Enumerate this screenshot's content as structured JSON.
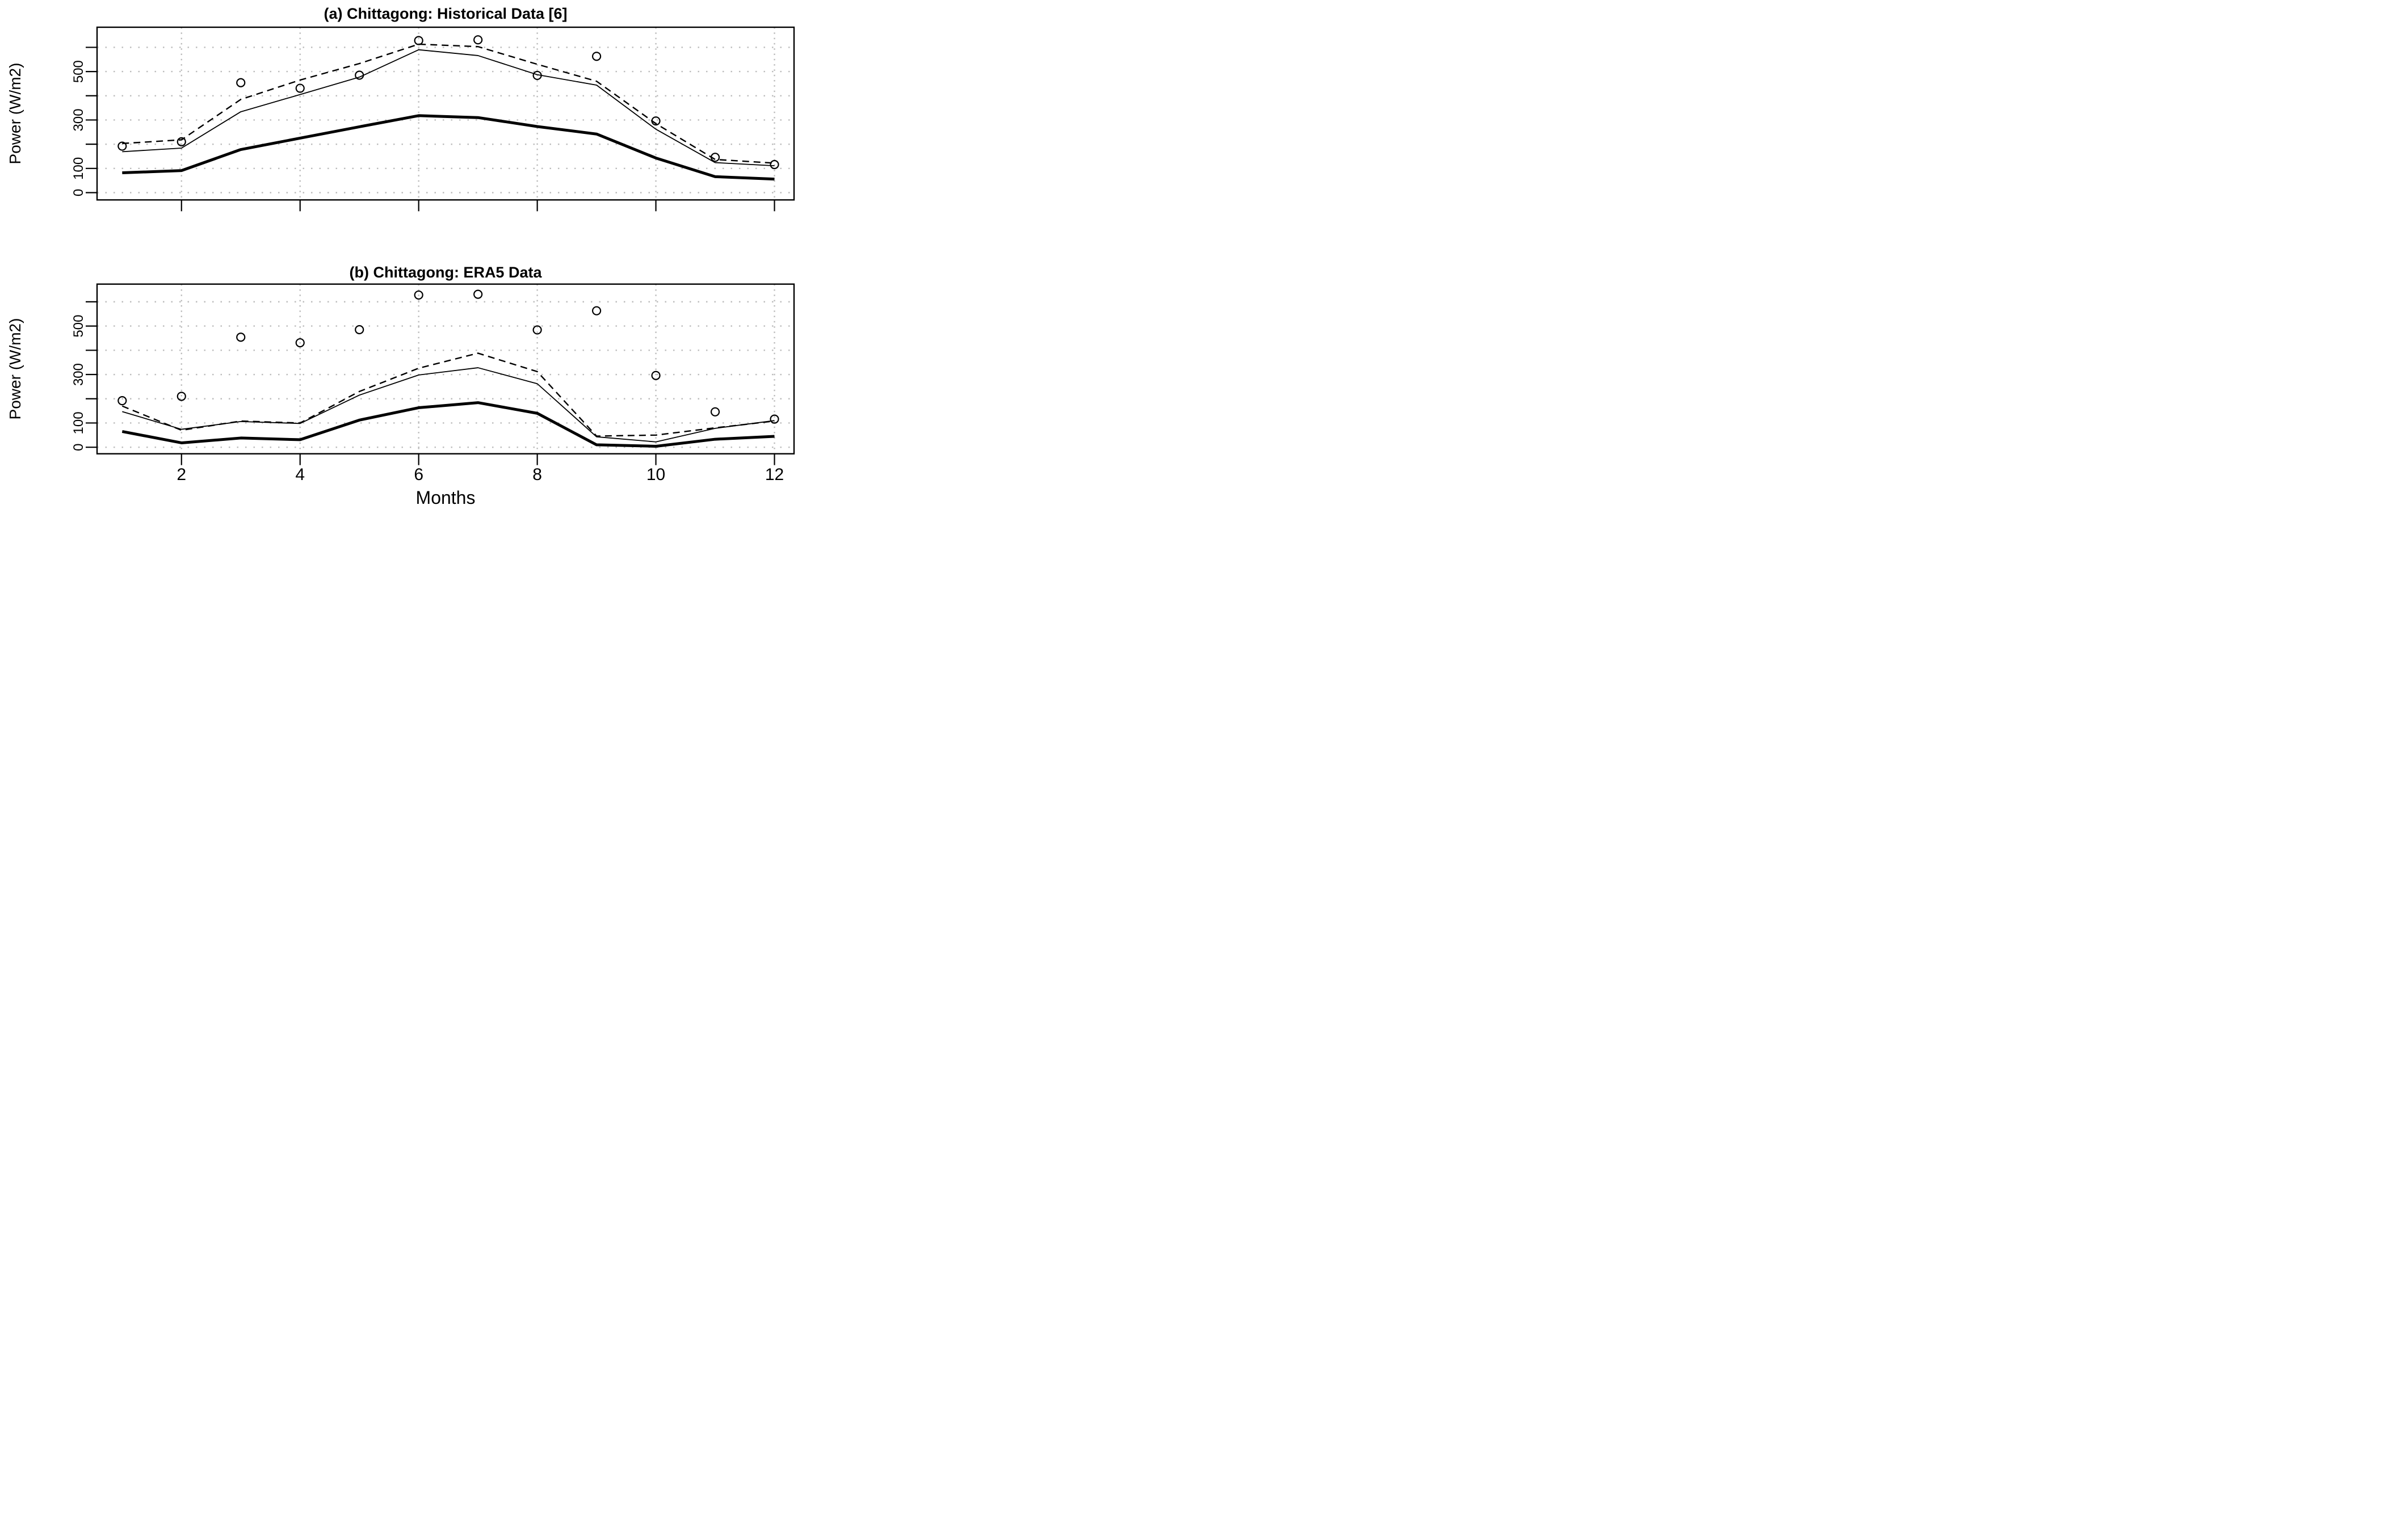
{
  "figure": {
    "background": "#ffffff",
    "ink_color": "#000000",
    "grid_color": "#bcbcbc",
    "xlabel": "Months",
    "ylabel": "Power (W/m2)",
    "x_tick_labels": [
      "2",
      "4",
      "6",
      "8",
      "10",
      "12"
    ]
  },
  "chart_data": [
    {
      "type": "line",
      "panel": "a",
      "title": "(a) Chittagong: Historical Data [6]",
      "xlabel": "Months",
      "ylabel": "Power (W/m2)",
      "x": [
        1,
        2,
        3,
        4,
        5,
        6,
        7,
        8,
        9,
        10,
        11,
        12
      ],
      "xlim": [
        0.576,
        12.33
      ],
      "ylim": [
        -30,
        683
      ],
      "x_ticks": [
        2,
        4,
        6,
        8,
        10,
        12
      ],
      "y_ticks": [
        0,
        100,
        200,
        300,
        400,
        500,
        600
      ],
      "y_tick_labels": [
        "0",
        "100",
        "",
        "300",
        "",
        "500",
        ""
      ],
      "grid": "dotted",
      "series": [
        {
          "name": "observed-circles",
          "style": "open-circle",
          "values": [
            192,
            210,
            454,
            431,
            485,
            628,
            631,
            484,
            563,
            296,
            146,
            116
          ]
        },
        {
          "name": "dashed-line",
          "style": "dashed",
          "values": [
            203,
            218,
            385,
            465,
            533,
            613,
            603,
            530,
            460,
            285,
            137,
            122
          ]
        },
        {
          "name": "thin-solid-line",
          "style": "solid-thin",
          "values": [
            169,
            184,
            334,
            405,
            477,
            590,
            566,
            487,
            444,
            262,
            124,
            111
          ]
        },
        {
          "name": "thick-solid-line",
          "style": "solid-thick",
          "values": [
            82,
            91,
            178,
            225,
            272,
            318,
            310,
            273,
            242,
            143,
            66,
            56
          ]
        }
      ]
    },
    {
      "type": "line",
      "panel": "b",
      "title": "(b) Chittagong: ERA5 Data",
      "xlabel": "Months",
      "ylabel": "Power (W/m2)",
      "x": [
        1,
        2,
        3,
        4,
        5,
        6,
        7,
        8,
        9,
        10,
        11,
        12
      ],
      "xlim": [
        0.576,
        12.33
      ],
      "ylim": [
        -27,
        673
      ],
      "x_ticks": [
        2,
        4,
        6,
        8,
        10,
        12
      ],
      "y_ticks": [
        0,
        100,
        200,
        300,
        400,
        500,
        600
      ],
      "y_tick_labels": [
        "0",
        "100",
        "",
        "300",
        "",
        "500",
        ""
      ],
      "grid": "dotted",
      "series": [
        {
          "name": "observed-circles",
          "style": "open-circle",
          "values": [
            192,
            210,
            454,
            431,
            485,
            628,
            631,
            484,
            563,
            296,
            146,
            116
          ]
        },
        {
          "name": "dashed-line",
          "style": "dashed",
          "values": [
            170,
            70,
            108,
            100,
            230,
            326,
            388,
            312,
            46,
            50,
            80,
            108
          ]
        },
        {
          "name": "thin-solid-line",
          "style": "solid-thin",
          "values": [
            147,
            74,
            106,
            98,
            215,
            298,
            328,
            262,
            43,
            22,
            78,
            110
          ]
        },
        {
          "name": "thick-solid-line",
          "style": "solid-thick",
          "values": [
            65,
            18,
            38,
            31,
            112,
            163,
            184,
            140,
            10,
            4,
            33,
            45
          ]
        }
      ]
    }
  ]
}
